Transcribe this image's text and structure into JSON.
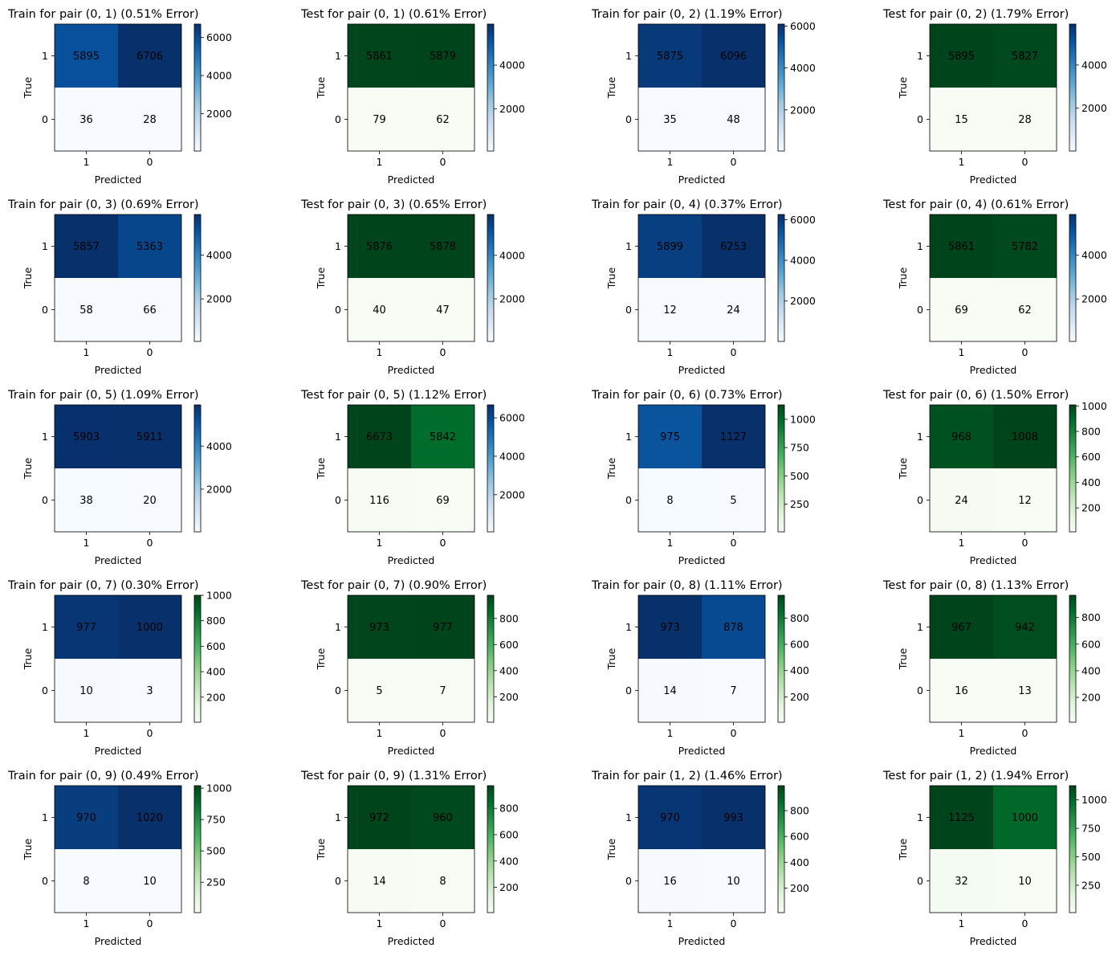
{
  "figure": {
    "xlabel": "Predicted",
    "ylabel": "True",
    "class_labels": [
      "1",
      "0"
    ],
    "colormaps": {
      "Blues": [
        "#f7fbff",
        "#deebf7",
        "#c6dbef",
        "#9ecae1",
        "#6baed6",
        "#4292c6",
        "#2171b5",
        "#08519c",
        "#08306b"
      ],
      "Greens": [
        "#f7fcf5",
        "#e5f5e0",
        "#c7e9c0",
        "#a1d99b",
        "#74c476",
        "#41ab5d",
        "#238b45",
        "#006d2c",
        "#00441b"
      ]
    }
  },
  "chart_data": [
    {
      "type": "heatmap",
      "title": "Train for pair (0, 1) (0.51% Error)",
      "cmap": "Blues",
      "cbar_cmap": "Blues",
      "cbar_ticks": [
        2000,
        4000,
        6000
      ],
      "values": [
        [
          5895,
          6706
        ],
        [
          36,
          28
        ]
      ],
      "vmin": 28,
      "vmax": 6706
    },
    {
      "type": "heatmap",
      "title": "Test for pair (0, 1) (0.61% Error)",
      "cmap": "Greens",
      "cbar_cmap": "Blues",
      "cbar_ticks": [
        2000,
        4000
      ],
      "values": [
        [
          5861,
          5879
        ],
        [
          79,
          62
        ]
      ],
      "vmin": 62,
      "vmax": 5879
    },
    {
      "type": "heatmap",
      "title": "Train for pair (0, 2) (1.19% Error)",
      "cmap": "Blues",
      "cbar_cmap": "Blues",
      "cbar_ticks": [
        2000,
        4000,
        6000
      ],
      "values": [
        [
          5875,
          6096
        ],
        [
          35,
          48
        ]
      ],
      "vmin": 35,
      "vmax": 6096
    },
    {
      "type": "heatmap",
      "title": "Test for pair (0, 2) (1.79% Error)",
      "cmap": "Greens",
      "cbar_cmap": "Blues",
      "cbar_ticks": [
        2000,
        4000
      ],
      "values": [
        [
          5895,
          5827
        ],
        [
          15,
          28
        ]
      ],
      "vmin": 15,
      "vmax": 5895
    },
    {
      "type": "heatmap",
      "title": "Train for pair (0, 3) (0.69% Error)",
      "cmap": "Blues",
      "cbar_cmap": "Blues",
      "cbar_ticks": [
        2000,
        4000
      ],
      "values": [
        [
          5857,
          5363
        ],
        [
          58,
          66
        ]
      ],
      "vmin": 58,
      "vmax": 5857
    },
    {
      "type": "heatmap",
      "title": "Test for pair (0, 3) (0.65% Error)",
      "cmap": "Greens",
      "cbar_cmap": "Blues",
      "cbar_ticks": [
        2000,
        4000
      ],
      "values": [
        [
          5876,
          5878
        ],
        [
          40,
          47
        ]
      ],
      "vmin": 40,
      "vmax": 5878
    },
    {
      "type": "heatmap",
      "title": "Train for pair (0, 4) (0.37% Error)",
      "cmap": "Blues",
      "cbar_cmap": "Blues",
      "cbar_ticks": [
        2000,
        4000,
        6000
      ],
      "values": [
        [
          5899,
          6253
        ],
        [
          12,
          24
        ]
      ],
      "vmin": 12,
      "vmax": 6253
    },
    {
      "type": "heatmap",
      "title": "Test for pair (0, 4) (0.61% Error)",
      "cmap": "Greens",
      "cbar_cmap": "Blues",
      "cbar_ticks": [
        2000,
        4000
      ],
      "values": [
        [
          5861,
          5782
        ],
        [
          69,
          62
        ]
      ],
      "vmin": 62,
      "vmax": 5861
    },
    {
      "type": "heatmap",
      "title": "Train for pair (0, 5) (1.09% Error)",
      "cmap": "Blues",
      "cbar_cmap": "Blues",
      "cbar_ticks": [
        2000,
        4000
      ],
      "values": [
        [
          5903,
          5911
        ],
        [
          38,
          20
        ]
      ],
      "vmin": 20,
      "vmax": 5911
    },
    {
      "type": "heatmap",
      "title": "Test for pair (0, 5) (1.12% Error)",
      "cmap": "Greens",
      "cbar_cmap": "Blues",
      "cbar_ticks": [
        2000,
        4000,
        6000
      ],
      "values": [
        [
          6673,
          5842
        ],
        [
          116,
          69
        ]
      ],
      "vmin": 69,
      "vmax": 6673
    },
    {
      "type": "heatmap",
      "title": "Train for pair (0, 6) (0.73% Error)",
      "cmap": "Blues",
      "cbar_cmap": "Greens",
      "cbar_ticks": [
        250,
        500,
        750,
        1000
      ],
      "values": [
        [
          975,
          1127
        ],
        [
          8,
          5
        ]
      ],
      "vmin": 5,
      "vmax": 1127
    },
    {
      "type": "heatmap",
      "title": "Test for pair (0, 6) (1.50% Error)",
      "cmap": "Greens",
      "cbar_cmap": "Greens",
      "cbar_ticks": [
        200,
        400,
        600,
        800,
        1000
      ],
      "values": [
        [
          968,
          1008
        ],
        [
          24,
          12
        ]
      ],
      "vmin": 12,
      "vmax": 1008
    },
    {
      "type": "heatmap",
      "title": "Train for pair (0, 7) (0.30% Error)",
      "cmap": "Blues",
      "cbar_cmap": "Greens",
      "cbar_ticks": [
        200,
        400,
        600,
        800,
        1000
      ],
      "values": [
        [
          977,
          1000
        ],
        [
          10,
          3
        ]
      ],
      "vmin": 3,
      "vmax": 1000
    },
    {
      "type": "heatmap",
      "title": "Test for pair (0, 7) (0.90% Error)",
      "cmap": "Greens",
      "cbar_cmap": "Greens",
      "cbar_ticks": [
        200,
        400,
        600,
        800
      ],
      "values": [
        [
          973,
          977
        ],
        [
          5,
          7
        ]
      ],
      "vmin": 5,
      "vmax": 977
    },
    {
      "type": "heatmap",
      "title": "Train for pair (0, 8) (1.11% Error)",
      "cmap": "Blues",
      "cbar_cmap": "Greens",
      "cbar_ticks": [
        200,
        400,
        600,
        800
      ],
      "values": [
        [
          973,
          878
        ],
        [
          14,
          7
        ]
      ],
      "vmin": 7,
      "vmax": 973
    },
    {
      "type": "heatmap",
      "title": "Test for pair (0, 8) (1.13% Error)",
      "cmap": "Greens",
      "cbar_cmap": "Greens",
      "cbar_ticks": [
        200,
        400,
        600,
        800
      ],
      "values": [
        [
          967,
          942
        ],
        [
          16,
          13
        ]
      ],
      "vmin": 13,
      "vmax": 967
    },
    {
      "type": "heatmap",
      "title": "Train for pair (0, 9) (0.49% Error)",
      "cmap": "Blues",
      "cbar_cmap": "Greens",
      "cbar_ticks": [
        250,
        500,
        750,
        1000
      ],
      "values": [
        [
          970,
          1020
        ],
        [
          8,
          10
        ]
      ],
      "vmin": 8,
      "vmax": 1020
    },
    {
      "type": "heatmap",
      "title": "Test for pair (0, 9) (1.31% Error)",
      "cmap": "Greens",
      "cbar_cmap": "Greens",
      "cbar_ticks": [
        200,
        400,
        600,
        800
      ],
      "values": [
        [
          972,
          960
        ],
        [
          14,
          8
        ]
      ],
      "vmin": 8,
      "vmax": 972
    },
    {
      "type": "heatmap",
      "title": "Train for pair (1, 2) (1.46% Error)",
      "cmap": "Blues",
      "cbar_cmap": "Greens",
      "cbar_ticks": [
        200,
        400,
        600,
        800
      ],
      "values": [
        [
          970,
          993
        ],
        [
          16,
          10
        ]
      ],
      "vmin": 10,
      "vmax": 993
    },
    {
      "type": "heatmap",
      "title": "Test for pair (1, 2) (1.94% Error)",
      "cmap": "Greens",
      "cbar_cmap": "Greens",
      "cbar_ticks": [
        250,
        500,
        750,
        1000
      ],
      "values": [
        [
          1125,
          1000
        ],
        [
          32,
          10
        ]
      ],
      "vmin": 10,
      "vmax": 1125
    }
  ]
}
